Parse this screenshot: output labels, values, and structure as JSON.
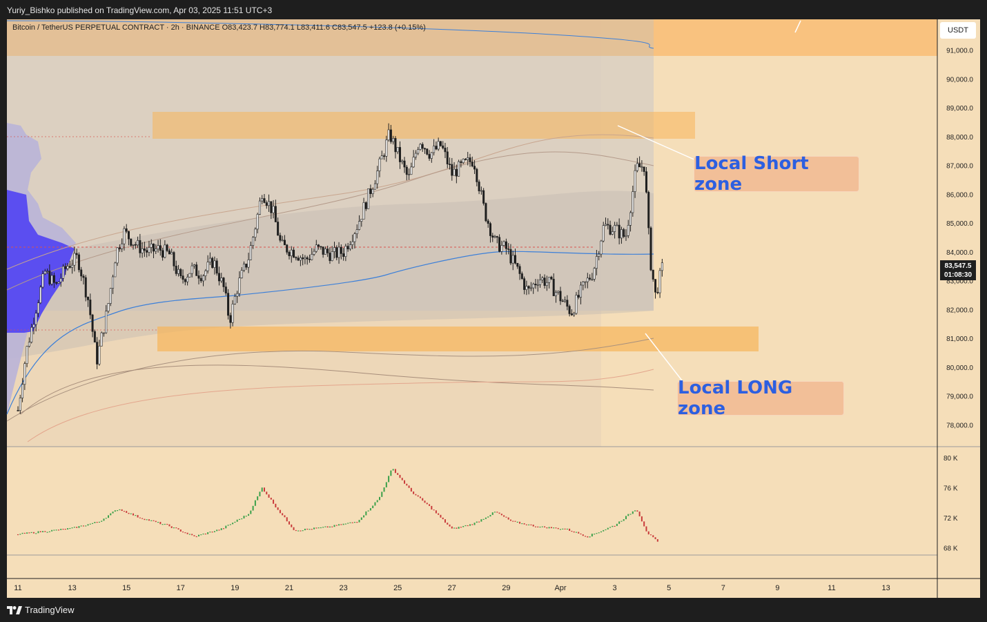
{
  "header": {
    "publisher_line": "Yuriy_Bishko published on TradingView.com, Apr 03, 2025 11:51 UTC+3"
  },
  "legend": {
    "text": "Bitcoin / TetherUS PERPETUAL CONTRACT · 2h · BINANCE  O83,423.7  H83,774.1  L83,411.6  C83,547.5  +123.8 (+0.15%)"
  },
  "unit_button": "USDT",
  "last_price": {
    "price": "83,547.5",
    "countdown": "01:08:30"
  },
  "annotations": {
    "short_zone": "Local Short zone",
    "long_zone": "Local LONG zone"
  },
  "footer": {
    "brand": "TradingView"
  },
  "colors": {
    "background": "#f5deb9",
    "zone": "#f7b55a",
    "vwap": "#3b7fd9",
    "profile": "#6a5cf0",
    "up": "#3aa04a",
    "down": "#c83a3a",
    "callout_text": "#2d5fe0"
  },
  "chart_data": [
    {
      "type": "candlestick",
      "title": "Bitcoin / TetherUS PERPETUAL CONTRACT · 2h · BINANCE",
      "ylim": [
        77000,
        92000
      ],
      "y_ticks": [
        "91,000.0",
        "90,000.0",
        "89,000.0",
        "88,000.0",
        "87,000.0",
        "86,000.0",
        "85,000.0",
        "84,000.0",
        "83,000.0",
        "82,000.0",
        "81,000.0",
        "80,000.0",
        "79,000.0",
        "78,000.0"
      ],
      "x_ticks": [
        "11",
        "13",
        "15",
        "17",
        "19",
        "21",
        "23",
        "25",
        "27",
        "29",
        "Apr",
        "3",
        "5",
        "7",
        "9",
        "11",
        "13"
      ],
      "x_domain_days": [
        10.8,
        44.6
      ],
      "approx_close_path": [
        [
          11.0,
          78500
        ],
        [
          11.3,
          80500
        ],
        [
          11.7,
          82200
        ],
        [
          12.0,
          83300
        ],
        [
          12.4,
          82800
        ],
        [
          12.8,
          83500
        ],
        [
          13.2,
          83800
        ],
        [
          13.6,
          82300
        ],
        [
          13.9,
          80200
        ],
        [
          14.3,
          82000
        ],
        [
          14.6,
          83900
        ],
        [
          14.9,
          84700
        ],
        [
          15.4,
          84200
        ],
        [
          15.8,
          84000
        ],
        [
          16.2,
          84100
        ],
        [
          16.6,
          83900
        ],
        [
          17.0,
          83000
        ],
        [
          17.4,
          83400
        ],
        [
          17.8,
          83200
        ],
        [
          18.2,
          83700
        ],
        [
          18.6,
          82700
        ],
        [
          18.8,
          81600
        ],
        [
          19.1,
          82800
        ],
        [
          19.5,
          83800
        ],
        [
          19.8,
          85100
        ],
        [
          20.0,
          86100
        ],
        [
          20.4,
          85400
        ],
        [
          20.7,
          84200
        ],
        [
          21.2,
          84000
        ],
        [
          21.6,
          83700
        ],
        [
          22.0,
          84100
        ],
        [
          22.6,
          83900
        ],
        [
          23.0,
          84000
        ],
        [
          23.5,
          84900
        ],
        [
          23.9,
          85900
        ],
        [
          24.3,
          86900
        ],
        [
          24.7,
          88100
        ],
        [
          25.0,
          87400
        ],
        [
          25.4,
          86500
        ],
        [
          25.8,
          87900
        ],
        [
          26.2,
          87400
        ],
        [
          26.6,
          87700
        ],
        [
          27.0,
          86700
        ],
        [
          27.4,
          87000
        ],
        [
          27.8,
          87200
        ],
        [
          28.2,
          85400
        ],
        [
          28.6,
          84300
        ],
        [
          29.0,
          84100
        ],
        [
          29.4,
          83400
        ],
        [
          29.8,
          82600
        ],
        [
          30.2,
          83100
        ],
        [
          30.6,
          82900
        ],
        [
          31.0,
          82400
        ],
        [
          31.4,
          81900
        ],
        [
          31.8,
          82700
        ],
        [
          32.2,
          83300
        ],
        [
          32.6,
          84900
        ],
        [
          33.0,
          84800
        ],
        [
          33.4,
          84500
        ],
        [
          33.8,
          86900
        ],
        [
          34.1,
          87000
        ],
        [
          34.3,
          83800
        ],
        [
          34.5,
          82500
        ],
        [
          34.8,
          83600
        ]
      ]
    },
    {
      "type": "bar",
      "title": "Lower indicator pane",
      "ylim": [
        67000,
        81000
      ],
      "y_ticks": [
        "80 K",
        "76 K",
        "72 K",
        "68 K"
      ],
      "approx_values": [
        [
          11.0,
          69800
        ],
        [
          12.0,
          70200
        ],
        [
          13.0,
          70600
        ],
        [
          14.0,
          71500
        ],
        [
          14.7,
          73200
        ],
        [
          15.5,
          72000
        ],
        [
          16.5,
          71000
        ],
        [
          17.5,
          69500
        ],
        [
          18.5,
          70500
        ],
        [
          19.5,
          72500
        ],
        [
          20.0,
          76000
        ],
        [
          20.6,
          73000
        ],
        [
          21.2,
          70300
        ],
        [
          22.5,
          70800
        ],
        [
          23.5,
          71500
        ],
        [
          24.3,
          74500
        ],
        [
          24.8,
          78600
        ],
        [
          25.5,
          75500
        ],
        [
          26.2,
          73400
        ],
        [
          27.0,
          70500
        ],
        [
          27.8,
          71200
        ],
        [
          28.6,
          72800
        ],
        [
          29.2,
          71500
        ],
        [
          30.2,
          70800
        ],
        [
          31.2,
          70500
        ],
        [
          32.0,
          69500
        ],
        [
          33.0,
          71000
        ],
        [
          33.8,
          73200
        ],
        [
          34.2,
          70000
        ],
        [
          34.6,
          68700
        ]
      ]
    }
  ]
}
